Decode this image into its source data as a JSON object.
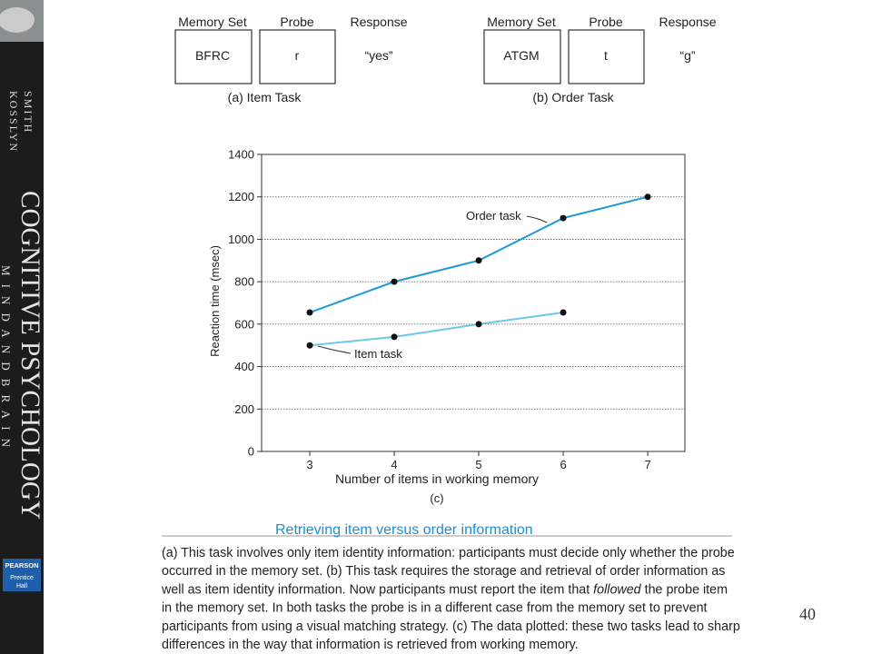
{
  "sidebar": {
    "authors": [
      "SMITH",
      "KOSSLYN"
    ],
    "title": "COGNITIVE PSYCHOLOGY",
    "subtitle": "M I N D   A N D   B R A I N",
    "publisher": [
      "PEARSON",
      "Prentice",
      "Hall"
    ]
  },
  "tasks": [
    {
      "headers": [
        "Memory Set",
        "Probe",
        "Response"
      ],
      "memory_set": "BFRC",
      "probe": "r",
      "response": "“yes”",
      "label": "(a) Item Task"
    },
    {
      "headers": [
        "Memory Set",
        "Probe",
        "Response"
      ],
      "memory_set": "ATGM",
      "probe": "t",
      "response": "“g”",
      "label": "(b) Order Task"
    }
  ],
  "chart_data": {
    "type": "line",
    "x_label": "Number of items in working memory",
    "y_label": "Reaction time (msec)",
    "panel_label": "(c)",
    "x": [
      3,
      4,
      5,
      6,
      7
    ],
    "series": [
      {
        "name": "Order task",
        "color": "#1e9ad6",
        "values": [
          655,
          800,
          900,
          1100,
          1200
        ]
      },
      {
        "name": "Item task",
        "color": "#6ec6ea",
        "values": [
          500,
          540,
          600,
          655,
          null
        ]
      }
    ],
    "xlim": [
      2.43,
      7.44
    ],
    "xticks": [
      3,
      4,
      5,
      6,
      7
    ],
    "ylim": [
      0,
      1400
    ],
    "yticks": [
      0,
      200,
      400,
      600,
      800,
      1000,
      1200,
      1400
    ],
    "grid": true
  },
  "caption": {
    "title": "Retrieving item versus order information",
    "lines": [
      "(a) This task involves only item identity information: participants must decide only whether the probe",
      "occurred in the memory set. (b) This task requires the storage and retrieval of order information as",
      {
        "before": "well as item identity information. Now participants must report the item that ",
        "italic": "followed",
        "after": " the probe item"
      },
      "in the memory set. In both tasks the probe is in a different case from the memory set to prevent",
      "participants from using a visual matching strategy. (c) The data plotted: these two tasks lead to sharp",
      "differences in the way that information is retrieved from working memory."
    ]
  },
  "page_number": "40"
}
